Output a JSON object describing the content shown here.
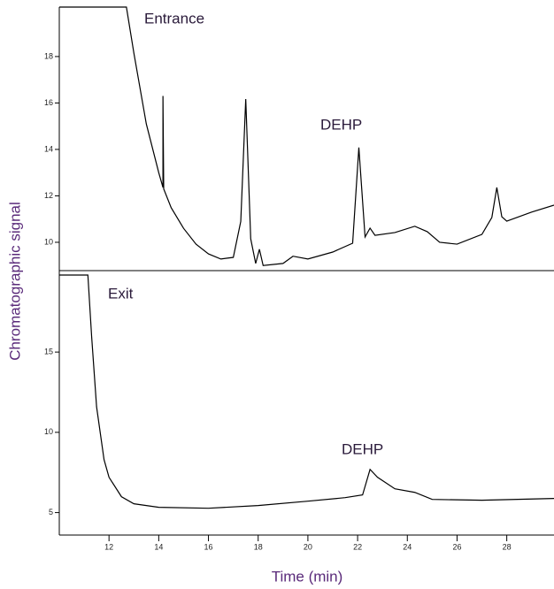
{
  "chart_data": [
    {
      "type": "line",
      "ylabel": "Chromatographic signal",
      "annotations": [
        "Entrance",
        "DEHP"
      ],
      "x": [
        10,
        12.7,
        13.0,
        13.5,
        14.0,
        14.17,
        14.17,
        14.2,
        14.5,
        15.0,
        15.5,
        16.0,
        16.5,
        17.0,
        17.3,
        17.5,
        17.7,
        17.9,
        18.05,
        18.2,
        19.0,
        19.4,
        20.0,
        21.0,
        21.8,
        22.05,
        22.3,
        22.5,
        22.7,
        23.5,
        24.3,
        24.8,
        25.3,
        26.0,
        27.0,
        27.4,
        27.6,
        27.8,
        28.0,
        29.0,
        29.9
      ],
      "series": [
        {
          "color": "#000000",
          "values": [
            20.13,
            20.13,
            18.15,
            15.1,
            13.0,
            12.36,
            16.3,
            12.3,
            11.49,
            10.6,
            9.92,
            9.5,
            9.28,
            9.35,
            10.9,
            16.17,
            10.15,
            9.09,
            9.7,
            9.0,
            9.09,
            9.4,
            9.28,
            9.58,
            9.96,
            14.08,
            10.23,
            10.61,
            10.3,
            10.42,
            10.69,
            10.46,
            10.0,
            9.92,
            10.34,
            11.07,
            12.36,
            11.1,
            10.91,
            11.3,
            11.6
          ]
        }
      ],
      "xlim": [
        10,
        29.9
      ],
      "ylim": [
        8.78,
        20.13
      ],
      "yticks": [
        10,
        12,
        14,
        16,
        18
      ]
    },
    {
      "type": "line",
      "xlabel": "Time (min)",
      "annotations": [
        "Exit",
        "DEHP"
      ],
      "x": [
        10,
        11.15,
        11.3,
        11.5,
        11.8,
        12.0,
        12.5,
        13.0,
        14.0,
        16.0,
        18.0,
        20.0,
        21.5,
        22.2,
        22.5,
        22.8,
        23.5,
        24.3,
        25.0,
        27.0,
        29.9
      ],
      "series": [
        {
          "color": "#000000",
          "values": [
            19.8,
            19.8,
            15.99,
            11.59,
            8.3,
            7.2,
            5.99,
            5.55,
            5.33,
            5.27,
            5.44,
            5.71,
            5.93,
            6.1,
            7.69,
            7.2,
            6.48,
            6.26,
            5.82,
            5.77,
            5.88
          ]
        }
      ],
      "xlim": [
        10,
        29.9
      ],
      "ylim": [
        3.6,
        19.8
      ],
      "yticks": [
        5,
        10,
        15
      ],
      "xticks": [
        12,
        14,
        16,
        18,
        20,
        22,
        24,
        26,
        28
      ]
    }
  ]
}
